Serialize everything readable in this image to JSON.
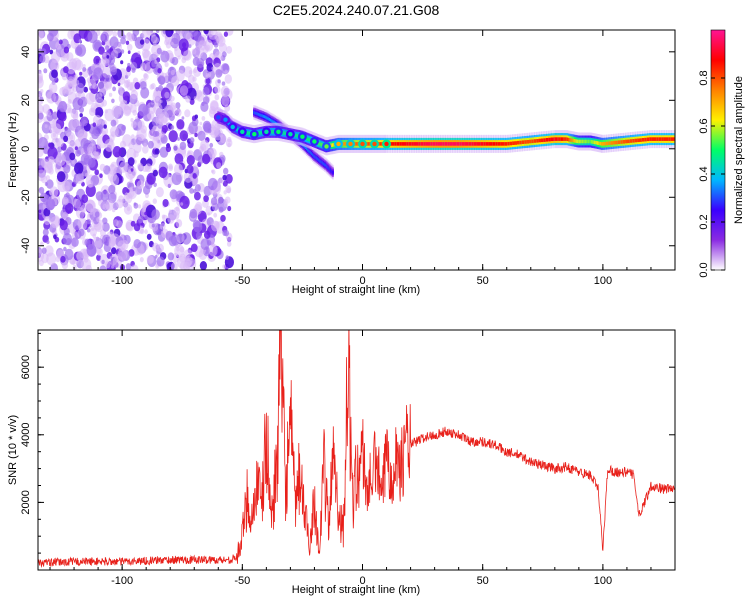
{
  "title": "C2E5.2024.240.07.21.G08",
  "colorbar": {
    "label": "Normalized spectral amplitude",
    "ticks": [
      "0.0",
      "0.2",
      "0.4",
      "0.6",
      "0.8"
    ],
    "tick_values": [
      0.0,
      0.2,
      0.4,
      0.6,
      0.8
    ],
    "range": [
      0,
      1
    ],
    "colors": [
      "#ffffff",
      "#8a2be2",
      "#3a00ff",
      "#00b7ff",
      "#00ff66",
      "#fff000",
      "#ff8000",
      "#ff0000",
      "#ff1493"
    ]
  },
  "chart_data": [
    {
      "type": "heatmap",
      "xlabel": "Height of straight line (km)",
      "ylabel": "Frequency (Hz)",
      "xlim": [
        -135,
        130
      ],
      "ylim": [
        -50,
        49
      ],
      "xticks": [
        -100,
        -50,
        0,
        50,
        100
      ],
      "yticks": [
        -40,
        -20,
        0,
        20,
        40
      ],
      "noise_region_x": [
        -135,
        -57
      ],
      "ridge": [
        {
          "x": -60,
          "y": 13,
          "v": 0.3
        },
        {
          "x": -57,
          "y": 12,
          "v": 0.35
        },
        {
          "x": -54,
          "y": 9,
          "v": 0.4
        },
        {
          "x": -50,
          "y": 7,
          "v": 0.45
        },
        {
          "x": -45,
          "y": 6,
          "v": 0.5
        },
        {
          "x": -40,
          "y": 7,
          "v": 0.45
        },
        {
          "x": -35,
          "y": 7,
          "v": 0.5
        },
        {
          "x": -30,
          "y": 6,
          "v": 0.45
        },
        {
          "x": -25,
          "y": 5,
          "v": 0.5
        },
        {
          "x": -20,
          "y": 3,
          "v": 0.5
        },
        {
          "x": -15,
          "y": 1,
          "v": 0.55
        },
        {
          "x": -10,
          "y": 2,
          "v": 0.7
        },
        {
          "x": -5,
          "y": 2,
          "v": 0.75
        },
        {
          "x": 0,
          "y": 2,
          "v": 0.8
        },
        {
          "x": 5,
          "y": 2,
          "v": 0.8
        },
        {
          "x": 10,
          "y": 2,
          "v": 0.85
        },
        {
          "x": 20,
          "y": 2,
          "v": 0.9
        },
        {
          "x": 30,
          "y": 2,
          "v": 0.95
        },
        {
          "x": 40,
          "y": 2,
          "v": 0.95
        },
        {
          "x": 50,
          "y": 2,
          "v": 0.9
        },
        {
          "x": 60,
          "y": 2,
          "v": 0.85
        },
        {
          "x": 70,
          "y": 3,
          "v": 0.8
        },
        {
          "x": 80,
          "y": 4,
          "v": 0.9
        },
        {
          "x": 85,
          "y": 4,
          "v": 0.85
        },
        {
          "x": 90,
          "y": 3,
          "v": 0.6
        },
        {
          "x": 95,
          "y": 3,
          "v": 0.55
        },
        {
          "x": 100,
          "y": 2,
          "v": 0.7
        },
        {
          "x": 110,
          "y": 3,
          "v": 0.8
        },
        {
          "x": 120,
          "y": 4,
          "v": 0.85
        },
        {
          "x": 130,
          "y": 4,
          "v": 0.85
        }
      ],
      "branch": [
        {
          "x": -45,
          "y": 15,
          "v": 0.3
        },
        {
          "x": -40,
          "y": 13,
          "v": 0.35
        },
        {
          "x": -35,
          "y": 10,
          "v": 0.35
        },
        {
          "x": -30,
          "y": 6,
          "v": 0.35
        },
        {
          "x": -25,
          "y": 2,
          "v": 0.35
        },
        {
          "x": -20,
          "y": -3,
          "v": 0.3
        },
        {
          "x": -15,
          "y": -7,
          "v": 0.3
        },
        {
          "x": -12,
          "y": -10,
          "v": 0.25
        }
      ]
    },
    {
      "type": "line",
      "xlabel": "Height of straight line (km)",
      "ylabel": "SNR (10 * v/v)",
      "xlim": [
        -135,
        130
      ],
      "ylim": [
        0,
        7100
      ],
      "xticks": [
        -100,
        -50,
        0,
        50,
        100
      ],
      "yticks": [
        2000,
        4000,
        6000
      ],
      "series": [
        {
          "color": "#e8201a",
          "x": [
            -135,
            -120,
            -100,
            -80,
            -60,
            -55,
            -52,
            -50,
            -48,
            -46,
            -44,
            -42,
            -40,
            -38,
            -36,
            -34,
            -32,
            -30,
            -28,
            -26,
            -24,
            -22,
            -20,
            -18,
            -16,
            -14,
            -12,
            -10,
            -8,
            -6,
            -4,
            -2,
            0,
            2,
            4,
            6,
            8,
            10,
            12,
            14,
            16,
            18,
            20,
            25,
            30,
            35,
            40,
            45,
            50,
            55,
            60,
            65,
            70,
            75,
            80,
            85,
            90,
            95,
            98,
            100,
            102,
            105,
            110,
            113,
            115,
            120,
            125,
            130
          ],
          "y": [
            200,
            250,
            250,
            300,
            300,
            300,
            400,
            1000,
            2200,
            1500,
            2600,
            1800,
            4000,
            1500,
            2800,
            6200,
            2500,
            4300,
            1800,
            2900,
            1600,
            800,
            2100,
            500,
            3000,
            1200,
            3800,
            1700,
            1200,
            6000,
            2100,
            2900,
            3500,
            2300,
            2800,
            3300,
            2000,
            3500,
            2900,
            3400,
            3000,
            3800,
            3700,
            3900,
            4000,
            4100,
            4000,
            3800,
            3800,
            3700,
            3500,
            3400,
            3200,
            3100,
            3000,
            3050,
            2900,
            2800,
            2400,
            600,
            3000,
            2900,
            2900,
            2800,
            1600,
            2500,
            2400,
            2400
          ]
        }
      ]
    }
  ]
}
